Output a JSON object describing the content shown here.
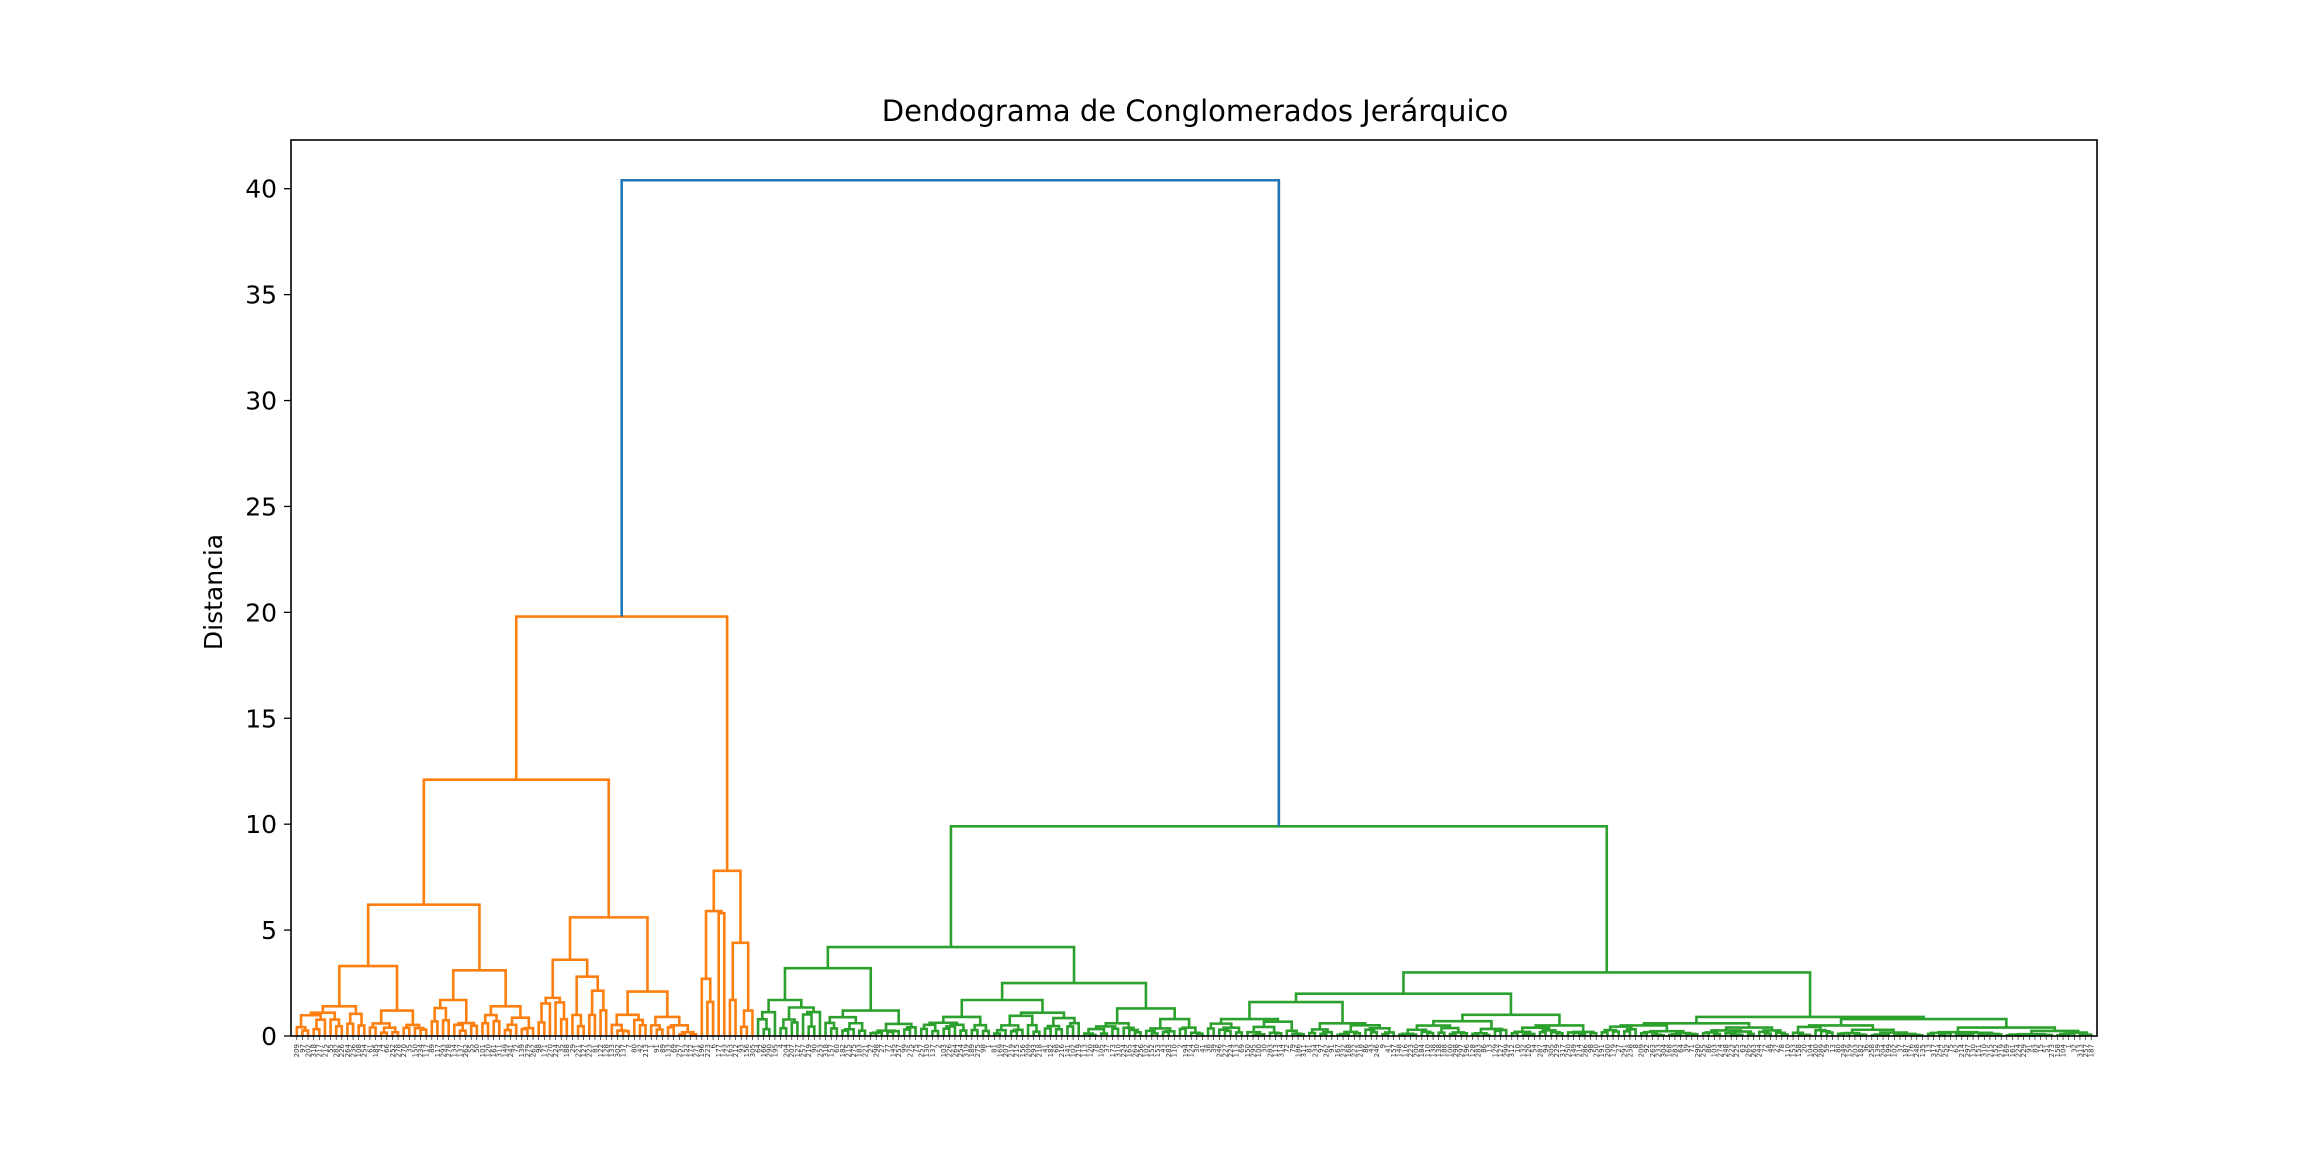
{
  "chart_data": {
    "type": "dendrogram",
    "title": "Dendograma de Conglomerados Jerárquico",
    "xlabel": "",
    "ylabel": "Distancia",
    "ylim": [
      0,
      42.3
    ],
    "yticks": [
      0,
      5,
      10,
      15,
      20,
      25,
      30,
      35,
      40
    ],
    "grid": false,
    "leaf_count": 320,
    "colors": {
      "above_threshold": "#1f77b4",
      "cluster_1": "#ff7f0e",
      "cluster_2": "#2ca02c"
    },
    "main_merges": [
      {
        "children": [
          "cluster_1",
          "cluster_2"
        ],
        "height": 40.4,
        "color": "#1f77b4"
      },
      {
        "children": [
          "orange_left",
          "orange_right"
        ],
        "height": 19.8,
        "color": "#ff7f0e"
      },
      {
        "children": [
          "orange_a",
          "orange_b"
        ],
        "height": 12.1,
        "color": "#ff7f0e"
      },
      {
        "children": [
          "orange_a1",
          "orange_a2"
        ],
        "height": 6.2,
        "color": "#ff7f0e"
      },
      {
        "children": [
          "orange_b1",
          "orange_b2"
        ],
        "height": 5.6,
        "color": "#ff7f0e"
      },
      {
        "children": [
          "orange_right1",
          "orange_right2"
        ],
        "height": 7.8,
        "color": "#ff7f0e"
      },
      {
        "children": [
          "green_left",
          "green_right"
        ],
        "height": 9.9,
        "color": "#2ca02c"
      },
      {
        "children": [
          "green_l1",
          "green_l2"
        ],
        "height": 4.2,
        "color": "#2ca02c"
      },
      {
        "children": [
          "green_r1",
          "green_r2"
        ],
        "height": 3.0,
        "color": "#2ca02c"
      }
    ]
  }
}
